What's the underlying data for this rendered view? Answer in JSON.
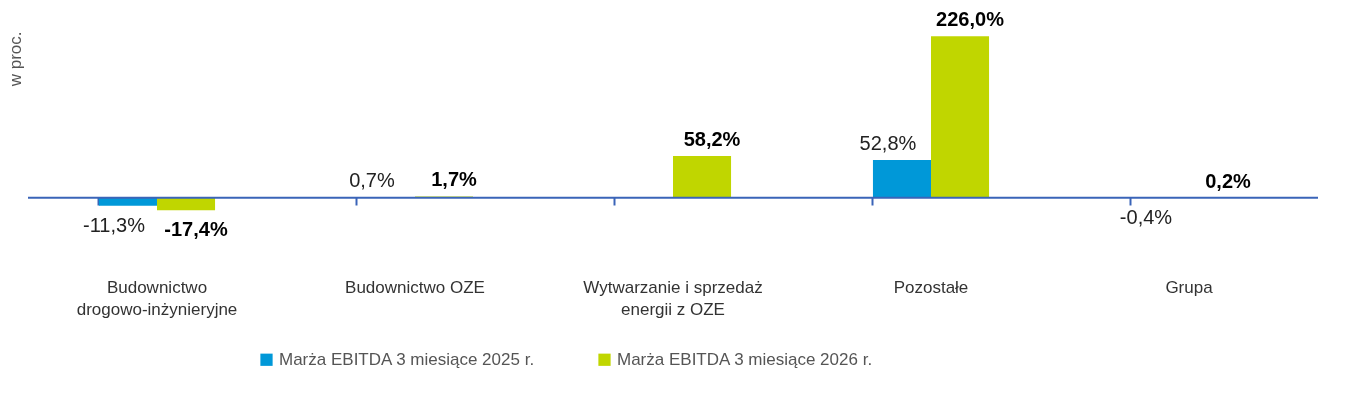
{
  "chart_data": {
    "type": "bar",
    "ylabel": "w proc.",
    "categories": [
      "Budownictwo drogowo-inżynieryjne",
      "Budownictwo OZE",
      "Wytwarzanie i sprzedaż energii z OZE",
      "Pozostałe",
      "Grupa"
    ],
    "series": [
      {
        "name": "Marża EBITDA 3 miesiące 2025 r.",
        "color": "#0098d8",
        "values": [
          -11.3,
          0.7,
          null,
          52.8,
          -0.4
        ],
        "value_labels": [
          "-11,3%",
          "0,7%",
          null,
          "52,8%",
          "-0,4%"
        ]
      },
      {
        "name": "Marża EBITDA 3 miesiące 2026 r.",
        "color": "#c0d600",
        "values": [
          -17.4,
          1.7,
          58.2,
          226.0,
          0.2
        ],
        "value_labels": [
          "-17,4%",
          "1,7%",
          "58,2%",
          "226,0%",
          "0,2%"
        ]
      }
    ],
    "ref_lines": [
      {
        "axis": "y",
        "value": 0,
        "color": "#3a64b8"
      }
    ],
    "legend": "bottom"
  }
}
